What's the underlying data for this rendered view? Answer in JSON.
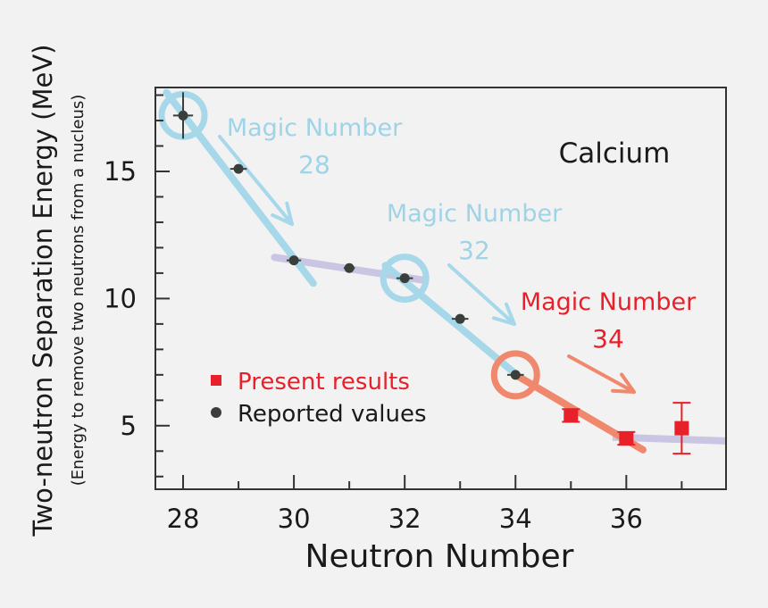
{
  "chart_data": {
    "type": "scatter",
    "title": "Calcium",
    "xlabel": "Neutron Number",
    "ylabel": "Two-neutron Separation Energy (MeV)",
    "ylabel_sub": "(Energy to remove two neutrons from a nucleus)",
    "xlim": [
      27.5,
      37.8
    ],
    "ylim": [
      2.5,
      18.3
    ],
    "xticks": [
      28,
      30,
      32,
      34,
      36
    ],
    "yticks": [
      5,
      10,
      15
    ],
    "series": [
      {
        "name": "Reported values",
        "marker": "circle",
        "color": "#3a3f3a",
        "x": [
          28,
          29,
          30,
          31,
          32,
          33,
          34
        ],
        "y": [
          17.2,
          15.1,
          11.5,
          11.2,
          10.8,
          9.2,
          7.0
        ],
        "xerr": [
          0.18,
          0.15,
          0.13,
          0.1,
          0.15,
          0.15,
          0.15
        ]
      },
      {
        "name": "Present results",
        "marker": "square",
        "color": "#e8202a",
        "x": [
          35,
          36,
          37
        ],
        "y": [
          5.4,
          4.5,
          4.9
        ],
        "yerr": [
          0.25,
          0.25,
          1.0
        ]
      }
    ],
    "annotations": [
      {
        "line1": "Magic Number",
        "line2": "28",
        "color": "#9fd3e6"
      },
      {
        "line1": "Magic Number",
        "line2": "32",
        "color": "#9fd3e6"
      },
      {
        "line1": "Magic Number",
        "line2": "34",
        "color": "#e8202a"
      }
    ],
    "legend": {
      "placement": "lower-left",
      "entries": [
        "Present results",
        "Reported values"
      ]
    }
  },
  "colors": {
    "background": "#f2f2f2",
    "axis": "#333333",
    "blue_trend": "#a6d8ea",
    "orange_trend": "#f0886e",
    "plateau": "#c9c5e2",
    "red": "#e8202a",
    "dark": "#3a3f3a"
  }
}
